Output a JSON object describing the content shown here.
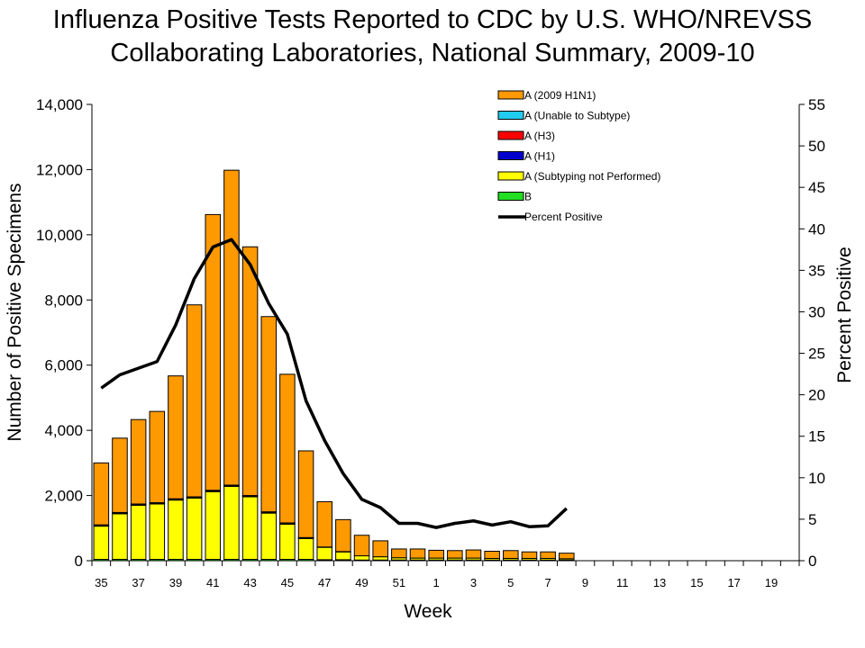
{
  "chart_data": {
    "type": "bar",
    "stacked": true,
    "title_lines": [
      "Influenza Positive Tests Reported to CDC by U.S. WHO/NREVSS",
      "Collaborating Laboratories, National Summary, 2009-10"
    ],
    "xlabel": "Week",
    "ylabel": "Number of Positive Specimens",
    "y2label": "Percent Positive",
    "ylim": [
      0,
      14000
    ],
    "y2lim": [
      0,
      55
    ],
    "yticks": [
      0,
      2000,
      4000,
      6000,
      8000,
      10000,
      12000,
      14000
    ],
    "ytick_labels": [
      "0",
      "2,000",
      "4,000",
      "6,000",
      "8,000",
      "10,000",
      "12,000",
      "14,000"
    ],
    "y2ticks": [
      0,
      5,
      10,
      15,
      20,
      25,
      30,
      35,
      40,
      45,
      50,
      55
    ],
    "y2tick_labels": [
      "0",
      "5",
      "10",
      "15",
      "20",
      "25",
      "30",
      "35",
      "40",
      "45",
      "50",
      "55"
    ],
    "weeks": [
      "35",
      "36",
      "37",
      "38",
      "39",
      "40",
      "41",
      "42",
      "43",
      "44",
      "45",
      "46",
      "47",
      "48",
      "49",
      "50",
      "51",
      "52",
      "1",
      "2",
      "3",
      "4",
      "5",
      "6",
      "7",
      "8",
      "9",
      "10",
      "11",
      "12",
      "13",
      "14",
      "15",
      "16",
      "17",
      "18",
      "19",
      "20"
    ],
    "xtick_labels": [
      "35",
      "",
      "37",
      "",
      "39",
      "",
      "41",
      "",
      "43",
      "",
      "45",
      "",
      "47",
      "",
      "49",
      "",
      "51",
      "",
      "1",
      "",
      "3",
      "",
      "5",
      "",
      "7",
      "",
      "9",
      "",
      "11",
      "",
      "13",
      "",
      "15",
      "",
      "17",
      "",
      "19",
      ""
    ],
    "series": [
      {
        "name": "B",
        "color": "#22dd22",
        "values": [
          40,
          40,
          40,
          40,
          40,
          40,
          40,
          40,
          40,
          40,
          40,
          40,
          30,
          30,
          20,
          20,
          20,
          20,
          20,
          20,
          20,
          20,
          20,
          20,
          20,
          20,
          null,
          null,
          null,
          null,
          null,
          null,
          null,
          null,
          null,
          null,
          null,
          null
        ]
      },
      {
        "name": "A (Subtyping not Performed)",
        "color": "#ffff00",
        "values": [
          1020,
          1400,
          1660,
          1700,
          1820,
          1880,
          2080,
          2240,
          1920,
          1420,
          1080,
          640,
          380,
          240,
          130,
          100,
          70,
          60,
          60,
          60,
          60,
          50,
          50,
          50,
          50,
          40,
          null,
          null,
          null,
          null,
          null,
          null,
          null,
          null,
          null,
          null,
          null,
          null
        ]
      },
      {
        "name": "A (H1)",
        "color": "#0000cc",
        "values": [
          20,
          20,
          20,
          20,
          20,
          20,
          20,
          20,
          20,
          20,
          20,
          10,
          10,
          10,
          0,
          0,
          0,
          0,
          0,
          0,
          0,
          0,
          0,
          0,
          0,
          0,
          null,
          null,
          null,
          null,
          null,
          null,
          null,
          null,
          null,
          null,
          null,
          null
        ]
      },
      {
        "name": "A (H3)",
        "color": "#ff0000",
        "values": [
          10,
          10,
          10,
          10,
          10,
          10,
          10,
          10,
          10,
          10,
          10,
          10,
          0,
          0,
          0,
          0,
          0,
          0,
          0,
          0,
          0,
          0,
          0,
          0,
          0,
          0,
          null,
          null,
          null,
          null,
          null,
          null,
          null,
          null,
          null,
          null,
          null,
          null
        ]
      },
      {
        "name": "A (Unable to Subtype)",
        "color": "#22ccee",
        "values": [
          10,
          10,
          10,
          10,
          10,
          10,
          10,
          10,
          10,
          10,
          10,
          10,
          0,
          0,
          0,
          0,
          0,
          0,
          0,
          0,
          0,
          0,
          0,
          0,
          0,
          0,
          null,
          null,
          null,
          null,
          null,
          null,
          null,
          null,
          null,
          null,
          null,
          null
        ]
      },
      {
        "name": "A (2009 H1N1)",
        "color": "#ff9900",
        "values": [
          1900,
          2280,
          2590,
          2800,
          3770,
          5890,
          8460,
          9660,
          7630,
          5990,
          4560,
          2660,
          1390,
          980,
          630,
          490,
          270,
          280,
          240,
          230,
          250,
          220,
          240,
          200,
          200,
          170,
          null,
          null,
          null,
          null,
          null,
          null,
          null,
          null,
          null,
          null,
          null,
          null
        ]
      }
    ],
    "legend_order": [
      "A (2009 H1N1)",
      "A (Unable to Subtype)",
      "A (H3)",
      "A (H1)",
      "A (Subtyping not Performed)",
      "B",
      "Percent Positive"
    ],
    "percent_positive": {
      "name": "Percent Positive",
      "color": "#000000",
      "axis": "right",
      "values": [
        20.8,
        22.4,
        23.2,
        24,
        28.4,
        34,
        37.8,
        38.7,
        35.7,
        31,
        27.3,
        19.3,
        14.5,
        10.5,
        7.4,
        6.4,
        4.5,
        4.5,
        4,
        4.5,
        4.8,
        4.3,
        4.7,
        4.1,
        4.2,
        6.3,
        null,
        null,
        null,
        null,
        null,
        null,
        null,
        null,
        null,
        null,
        null,
        null
      ]
    },
    "legend_position": "top-right"
  }
}
